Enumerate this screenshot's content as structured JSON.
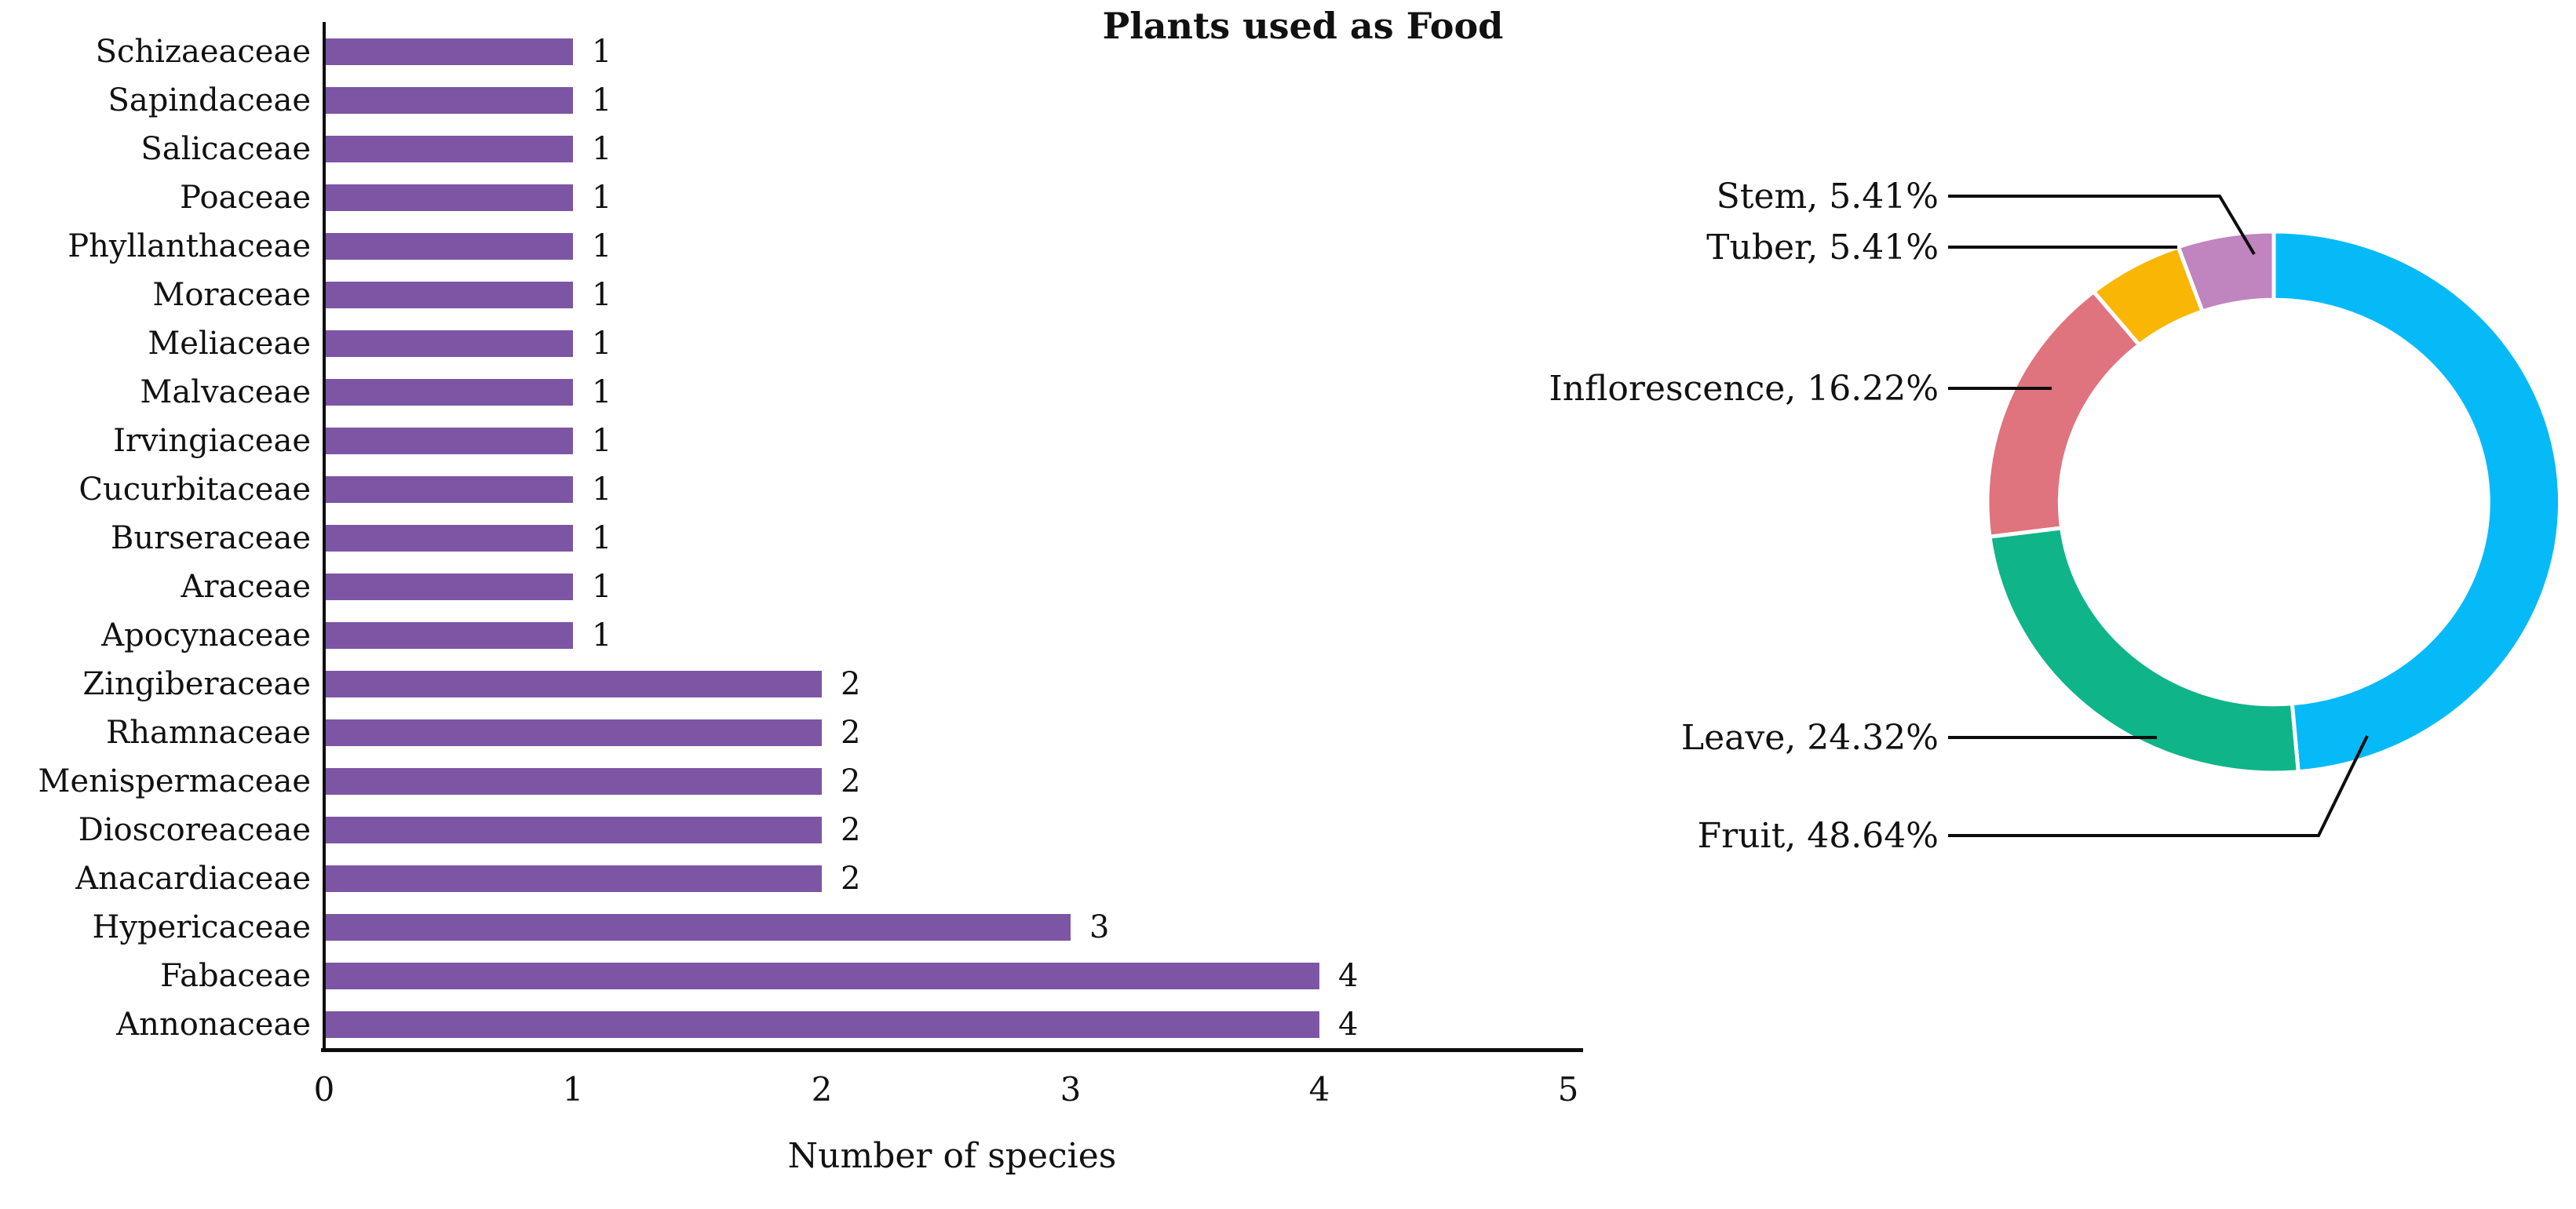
{
  "figure": {
    "title": "Plants used as Food"
  },
  "colors": {
    "bar": "#7D55A5",
    "axis": "#0D0D0D",
    "fruit": "#06BAF8",
    "leave": "#0FB489",
    "inflorescence": "#DF737E",
    "tuber": "#FAB605",
    "stem": "#C084BE"
  },
  "chart_data": [
    {
      "type": "bar",
      "orientation": "horizontal",
      "title": "",
      "xlabel": "Number of species",
      "ylabel": "",
      "xlim": [
        0,
        5
      ],
      "xticks": [
        0,
        1,
        2,
        3,
        4,
        5
      ],
      "xtick_labels": [
        "0",
        "1",
        "2",
        "3",
        "4",
        "5"
      ],
      "grid": false,
      "bar_color": "#7D55A5",
      "categories": [
        "Schizaeaceae",
        "Sapindaceae",
        "Salicaceae",
        "Poaceae",
        "Phyllanthaceae",
        "Moraceae",
        "Meliaceae",
        "Malvaceae",
        "Irvingiaceae",
        "Cucurbitaceae",
        "Burseraceae",
        "Araceae",
        "Apocynaceae",
        "Zingiberaceae",
        "Rhamnaceae",
        "Menispermaceae",
        "Dioscoreaceae",
        "Anacardiaceae",
        "Hypericaceae",
        "Fabaceae",
        "Annonaceae"
      ],
      "values": [
        1,
        1,
        1,
        1,
        1,
        1,
        1,
        1,
        1,
        1,
        1,
        1,
        1,
        2,
        2,
        2,
        2,
        2,
        3,
        4,
        4
      ],
      "value_labels": [
        "1",
        "1",
        "1",
        "1",
        "1",
        "1",
        "1",
        "1",
        "1",
        "1",
        "1",
        "1",
        "1",
        "2",
        "2",
        "2",
        "2",
        "2",
        "3",
        "4",
        "4"
      ]
    },
    {
      "type": "pie",
      "subtype": "donut",
      "title": "Plants used as Food",
      "direction": "clockwise",
      "start_angle_deg": 0,
      "legend_position": "none",
      "slices": [
        {
          "label": "Fruit",
          "percent": 48.64,
          "display": "Fruit, 48.64%",
          "color": "#06BAF8"
        },
        {
          "label": "Leave",
          "percent": 24.32,
          "display": "Leave, 24.32%",
          "color": "#0FB489"
        },
        {
          "label": "Inflorescence",
          "percent": 16.22,
          "display": "Inflorescence, 16.22%",
          "color": "#DF737E"
        },
        {
          "label": "Tuber",
          "percent": 5.41,
          "display": "Tuber, 5.41%",
          "color": "#FAB605"
        },
        {
          "label": "Stem",
          "percent": 5.41,
          "display": "Stem, 5.41%",
          "color": "#C084BE"
        }
      ]
    }
  ]
}
